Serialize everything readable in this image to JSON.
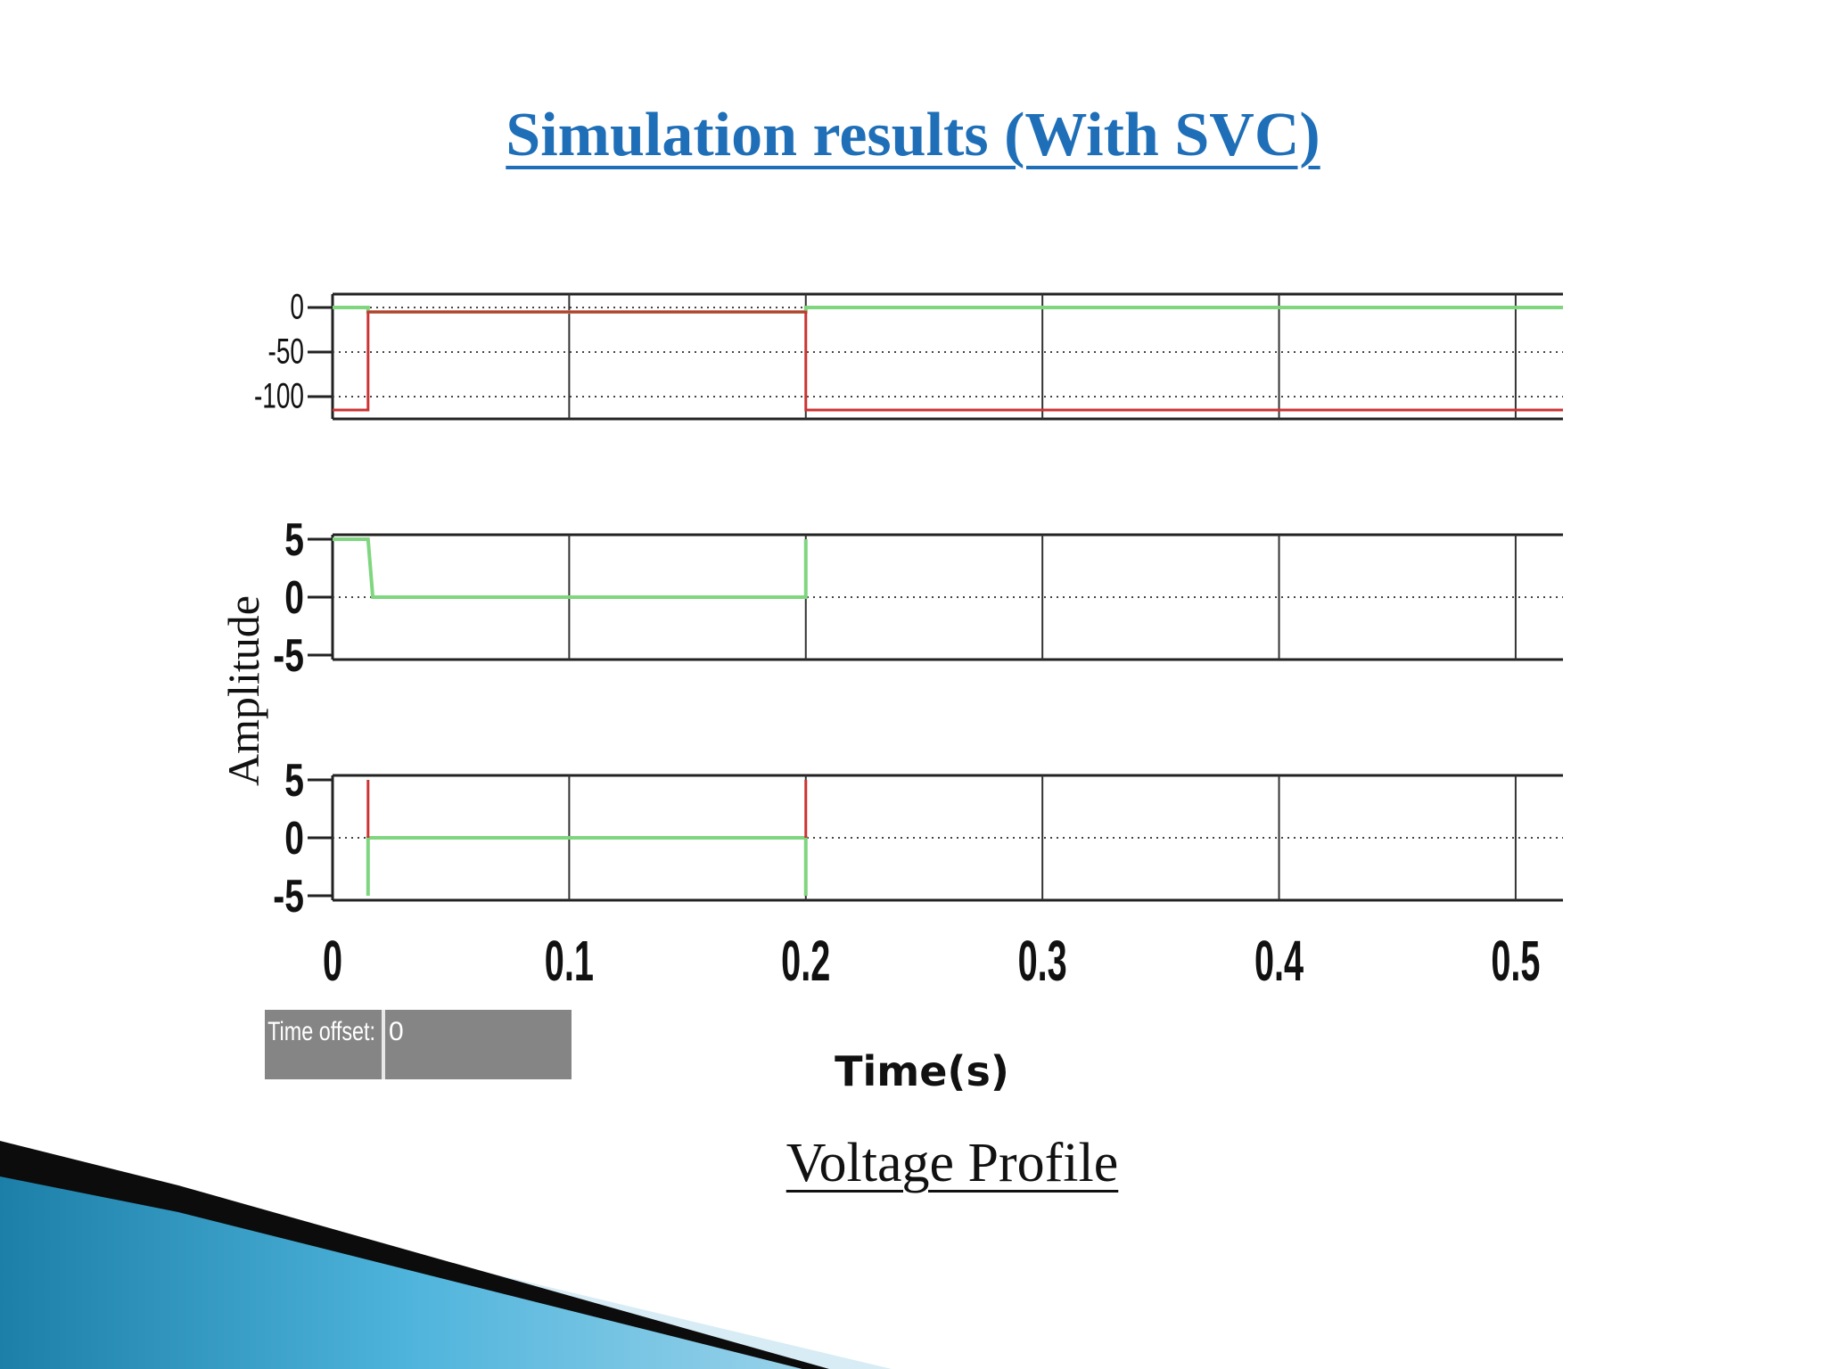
{
  "slide": {
    "title": "Simulation results (With SVC)",
    "caption": "Voltage Profile"
  },
  "colors": {
    "title": "#1f6fb8",
    "green_trace": "#7fd67f",
    "red_trace": "#cc3333",
    "axis": "#222222",
    "accent_blue": "#2a8fbd"
  },
  "chart_data": {
    "type": "line",
    "ylabel": "Amplitude",
    "xlabel": "Time(s)",
    "xlim": [
      0,
      0.52
    ],
    "x_ticks": [
      "0",
      "0.1",
      "0.2",
      "0.3",
      "0.4",
      "0.5"
    ],
    "x_tick_values": [
      0,
      0.1,
      0.2,
      0.3,
      0.4,
      0.5
    ],
    "grid": true,
    "legend": "none",
    "panels": [
      {
        "ylim": [
          -120,
          10
        ],
        "y_ticks": [
          "0",
          "-50",
          "-100"
        ],
        "y_tick_values": [
          0,
          -50,
          -100
        ],
        "series": [
          {
            "color": "green",
            "x": [
              0,
              0.015,
              0.015,
              0.2,
              0.2,
              0.52
            ],
            "y": [
              0,
              0,
              -5,
              -5,
              0,
              0
            ]
          },
          {
            "color": "red",
            "x": [
              0,
              0.015,
              0.015,
              0.2,
              0.2,
              0.52
            ],
            "y": [
              -115,
              -115,
              -5,
              -5,
              -115,
              -115
            ]
          }
        ]
      },
      {
        "ylim": [
          -5,
          5
        ],
        "y_ticks": [
          "5",
          "0",
          "-5"
        ],
        "y_tick_values": [
          5,
          0,
          -5
        ],
        "series": [
          {
            "color": "green",
            "x": [
              0,
              0.015,
              0.015,
              0.017,
              0.2,
              0.2
            ],
            "y": [
              5,
              5,
              5,
              0,
              0,
              5
            ]
          }
        ]
      },
      {
        "ylim": [
          -5,
          5
        ],
        "y_ticks": [
          "5",
          "0",
          "-5"
        ],
        "y_tick_values": [
          5,
          0,
          -5
        ],
        "series": [
          {
            "color": "green",
            "x": [
              0.015,
              0.015,
              0.2,
              0.2
            ],
            "y": [
              -5,
              0,
              0,
              -5
            ]
          },
          {
            "color": "red",
            "x": [
              0.015,
              0.015
            ],
            "y": [
              5,
              0
            ]
          },
          {
            "color": "red",
            "x": [
              0.2,
              0.2
            ],
            "y": [
              5,
              0
            ]
          }
        ]
      }
    ]
  },
  "time_offset": {
    "label": "Time offset:",
    "value": "0"
  }
}
